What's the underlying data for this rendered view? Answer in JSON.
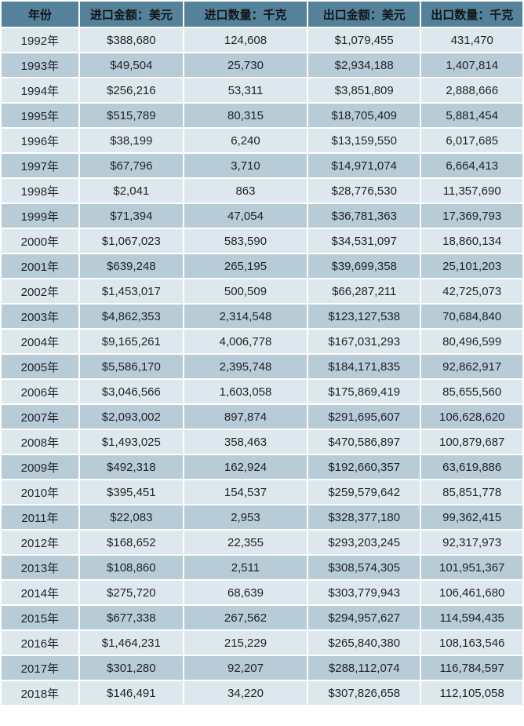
{
  "colors": {
    "header_bg": "#55829b",
    "row_light_bg": "#dde8ee",
    "row_dark_bg": "#b8ccd8",
    "grid_separator": "#ffffff",
    "header_text": "#111417",
    "cell_text": "#1f2226"
  },
  "chart_data": {
    "type": "table",
    "columns": [
      "年份",
      "进口金额：美元",
      "进口数量：千克",
      "出口金额：美元",
      "出口数量：千克"
    ],
    "rows": [
      [
        "1992年",
        "$388,680",
        "124,608",
        "$1,079,455",
        "431,470"
      ],
      [
        "1993年",
        "$49,504",
        "25,730",
        "$2,934,188",
        "1,407,814"
      ],
      [
        "1994年",
        "$256,216",
        "53,311",
        "$3,851,809",
        "2,888,666"
      ],
      [
        "1995年",
        "$515,789",
        "80,315",
        "$18,705,409",
        "5,881,454"
      ],
      [
        "1996年",
        "$38,199",
        "6,240",
        "$13,159,550",
        "6,017,685"
      ],
      [
        "1997年",
        "$67,796",
        "3,710",
        "$14,971,074",
        "6,664,413"
      ],
      [
        "1998年",
        "$2,041",
        "863",
        "$28,776,530",
        "11,357,690"
      ],
      [
        "1999年",
        "$71,394",
        "47,054",
        "$36,781,363",
        "17,369,793"
      ],
      [
        "2000年",
        "$1,067,023",
        "583,590",
        "$34,531,097",
        "18,860,134"
      ],
      [
        "2001年",
        "$639,248",
        "265,195",
        "$39,699,358",
        "25,101,203"
      ],
      [
        "2002年",
        "$1,453,017",
        "500,509",
        "$66,287,211",
        "42,725,073"
      ],
      [
        "2003年",
        "$4,862,353",
        "2,314,548",
        "$123,127,538",
        "70,684,840"
      ],
      [
        "2004年",
        "$9,165,261",
        "4,006,778",
        "$167,031,293",
        "80,496,599"
      ],
      [
        "2005年",
        "$5,586,170",
        "2,395,748",
        "$184,171,835",
        "92,862,917"
      ],
      [
        "2006年",
        "$3,046,566",
        "1,603,058",
        "$175,869,419",
        "85,655,560"
      ],
      [
        "2007年",
        "$2,093,002",
        "897,874",
        "$291,695,607",
        "106,628,620"
      ],
      [
        "2008年",
        "$1,493,025",
        "358,463",
        "$470,586,897",
        "100,879,687"
      ],
      [
        "2009年",
        "$492,318",
        "162,924",
        "$192,660,357",
        "63,619,886"
      ],
      [
        "2010年",
        "$395,451",
        "154,537",
        "$259,579,642",
        "85,851,778"
      ],
      [
        "2011年",
        "$22,083",
        "2,953",
        "$328,377,180",
        "99,362,415"
      ],
      [
        "2012年",
        "$168,652",
        "22,355",
        "$293,203,245",
        "92,317,973"
      ],
      [
        "2013年",
        "$108,860",
        "2,511",
        "$308,574,305",
        "101,951,367"
      ],
      [
        "2014年",
        "$275,720",
        "68,639",
        "$303,779,943",
        "106,461,680"
      ],
      [
        "2015年",
        "$677,338",
        "267,562",
        "$294,957,627",
        "114,594,435"
      ],
      [
        "2016年",
        "$1,464,231",
        "215,229",
        "$265,840,380",
        "108,163,546"
      ],
      [
        "2017年",
        "$301,280",
        "92,207",
        "$288,112,074",
        "116,784,597"
      ],
      [
        "2018年",
        "$146,491",
        "34,220",
        "$307,826,658",
        "112,105,058"
      ]
    ]
  }
}
